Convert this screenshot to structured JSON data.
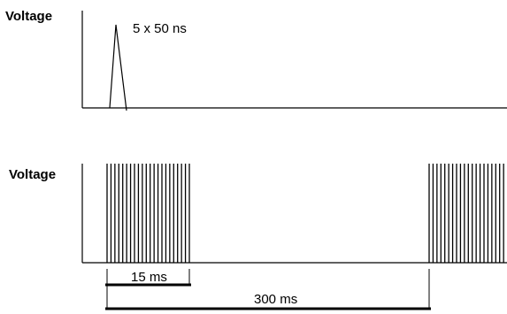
{
  "top_plot": {
    "ylabel": "Voltage",
    "pulse_label": "5 x 50 ns"
  },
  "bottom_plot": {
    "ylabel": "Voltage",
    "burst_duration_label": "15 ms",
    "period_label": "300 ms",
    "pulses_per_burst": 22
  },
  "colors": {
    "ink": "#000000",
    "background": "#ffffff"
  }
}
